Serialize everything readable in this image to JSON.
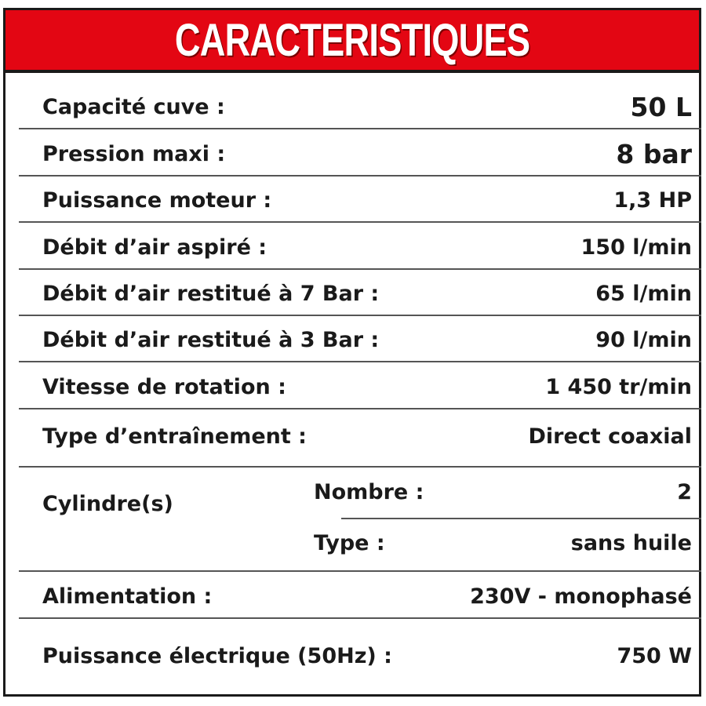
{
  "title": "CARACTERISTIQUES",
  "colors": {
    "header": "#e30613",
    "text": "#1a1a1a"
  },
  "rows": [
    {
      "label": "Capacité cuve :",
      "value": "50 L"
    },
    {
      "label": "Pression maxi :",
      "value": "8 bar"
    },
    {
      "label": "Puissance moteur :",
      "value": "1,3 HP"
    },
    {
      "label": "Débit d’air aspiré :",
      "value": "150 l/min"
    },
    {
      "label": "Débit d’air restitué à 7 Bar :",
      "value": "65 l/min"
    },
    {
      "label": "Débit d’air restitué à 3 Bar :",
      "value": "90 l/min"
    },
    {
      "label": "Vitesse de rotation :",
      "value": "1 450 tr/min"
    },
    {
      "label": "Type d’entraînement :",
      "value": "Direct coaxial"
    }
  ],
  "cylinders": {
    "label": "Cylindre(s)",
    "nombre_label": "Nombre :",
    "nombre_value": "2",
    "type_label": "Type :",
    "type_value": "sans huile"
  },
  "rows2": [
    {
      "label": "Alimentation :",
      "value": "230V - monophasé"
    },
    {
      "label": "Puissance électrique (50Hz) :",
      "value": "750 W"
    }
  ]
}
